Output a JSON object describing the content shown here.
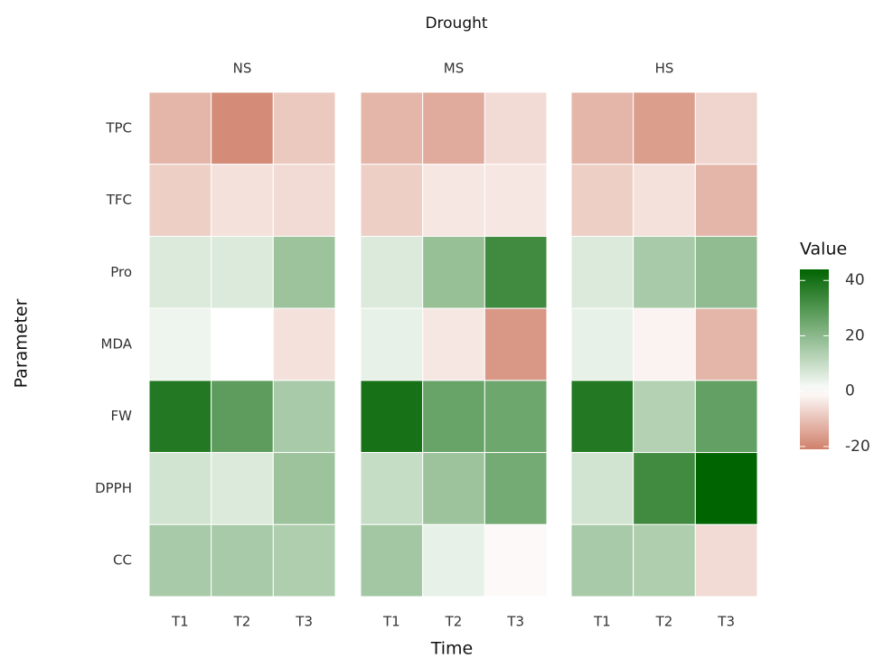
{
  "chart_data": {
    "type": "heatmap",
    "title": "Drought",
    "x_label": "Time",
    "y_label": "Parameter",
    "x_categories": [
      "T1",
      "T2",
      "T3"
    ],
    "y_categories": [
      "TPC",
      "TFC",
      "Pro",
      "MDA",
      "FW",
      "DPPH",
      "CC"
    ],
    "panels": [
      {
        "name": "NS",
        "values": [
          [
            -12,
            -19,
            -9
          ],
          [
            -8,
            -5,
            -6
          ],
          [
            6,
            6,
            17
          ],
          [
            3,
            0,
            -5
          ],
          [
            38,
            28,
            15
          ],
          [
            8,
            6,
            17
          ],
          [
            15,
            15,
            14
          ]
        ]
      },
      {
        "name": "MS",
        "values": [
          [
            -12,
            -14,
            -6
          ],
          [
            -8,
            -4,
            -4
          ],
          [
            6,
            18,
            33
          ],
          [
            4,
            -4,
            -17
          ],
          [
            40,
            26,
            25
          ],
          [
            10,
            17,
            24
          ],
          [
            16,
            4,
            -1
          ]
        ]
      },
      {
        "name": "HS",
        "values": [
          [
            -12,
            -16,
            -7
          ],
          [
            -8,
            -5,
            -12
          ],
          [
            6,
            15,
            19
          ],
          [
            4,
            -2,
            -12
          ],
          [
            38,
            13,
            27
          ],
          [
            8,
            33,
            44
          ],
          [
            15,
            14,
            -6
          ]
        ]
      }
    ],
    "legend_title": "Value",
    "colors": {
      "low": "#d0806a",
      "mid": "#ffffff",
      "high": "#006400"
    },
    "clim": [
      -21,
      44
    ],
    "cticks": [
      -20,
      0,
      20,
      40
    ]
  }
}
